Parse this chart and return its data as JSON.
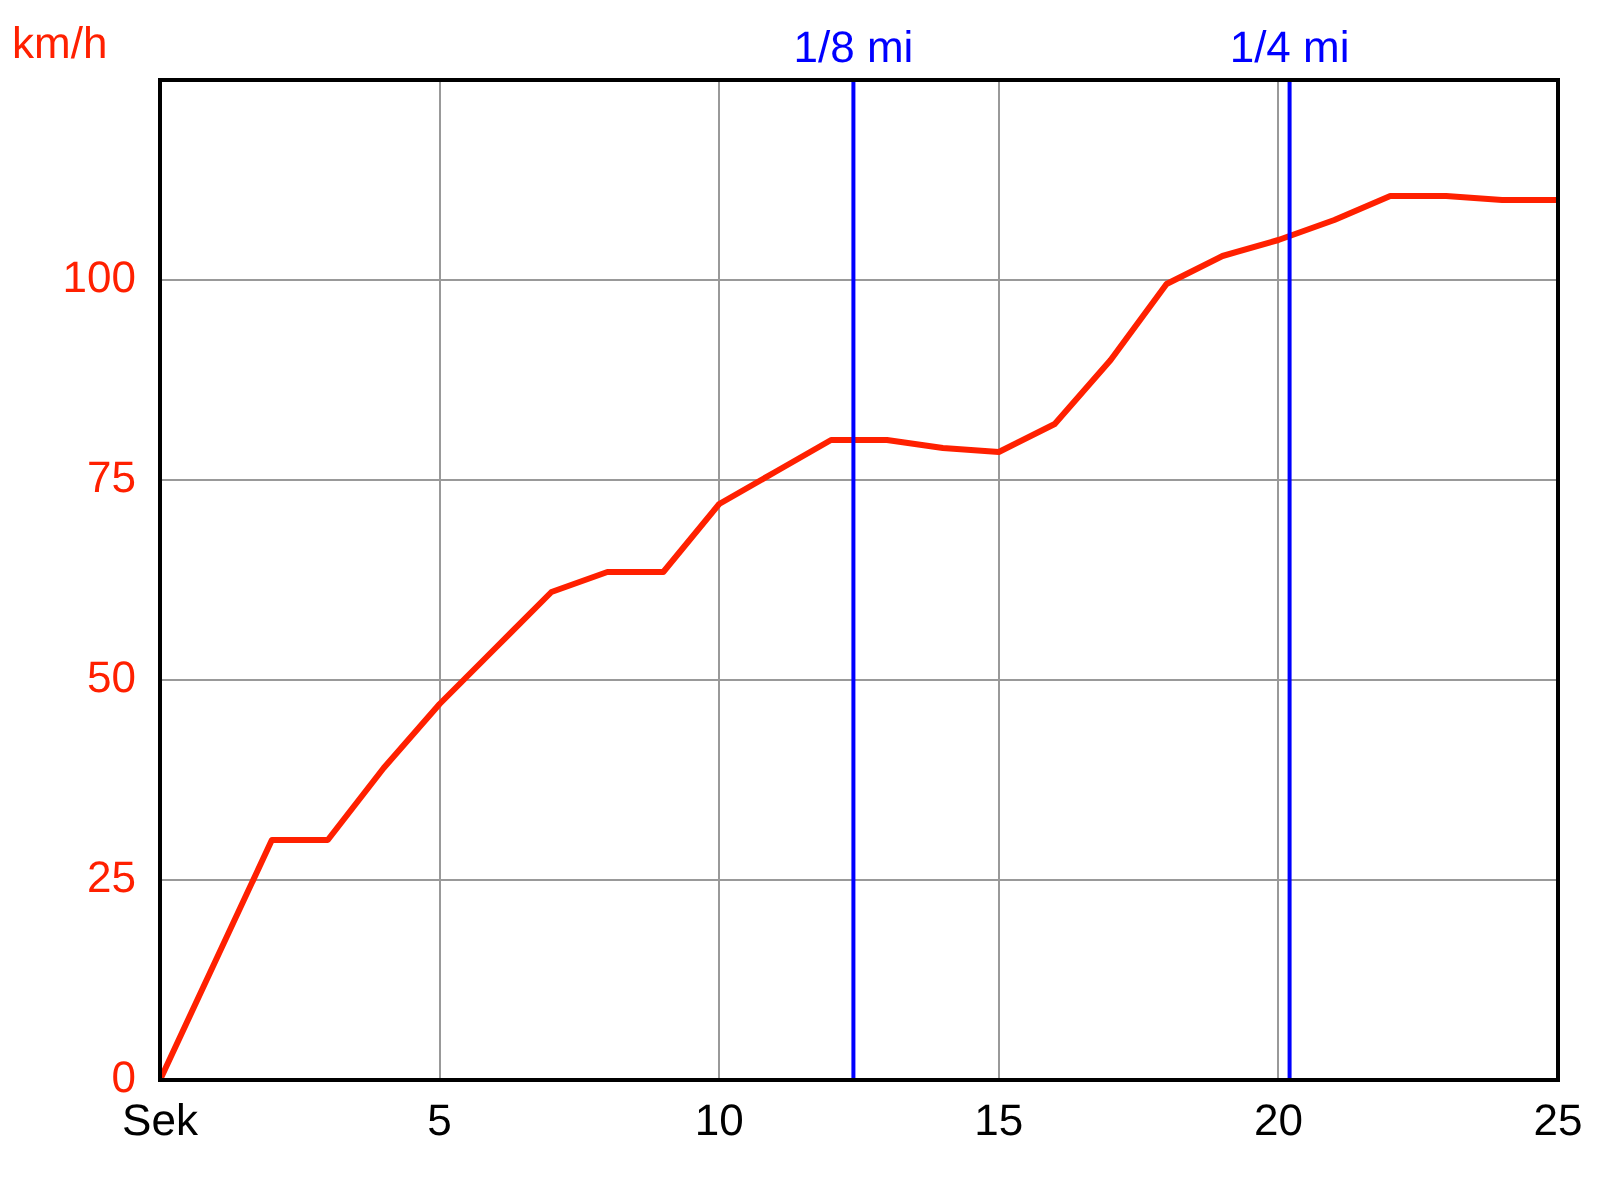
{
  "chart_data": {
    "type": "line",
    "ylabel": "km/h",
    "x": [
      0,
      2,
      3,
      4,
      5,
      6,
      7,
      8,
      9,
      10,
      11,
      12,
      12.5,
      13,
      14,
      15,
      16,
      17,
      18,
      19,
      20,
      21,
      22,
      23,
      24,
      25
    ],
    "series": [
      {
        "color": "#ff2000",
        "values": [
          0,
          30,
          30,
          39,
          47,
          54,
          61,
          63.5,
          63.5,
          72,
          76,
          80,
          80,
          80,
          79,
          78.5,
          82,
          90,
          99.5,
          103,
          105,
          107.5,
          110.5,
          110.5,
          110,
          110
        ]
      }
    ],
    "xlim": [
      0,
      25
    ],
    "xticks": [
      {
        "value": 0,
        "label": "Sek"
      },
      5,
      10,
      15,
      20,
      25
    ],
    "ylim": [
      0,
      125
    ],
    "yticks": [
      0,
      25,
      50,
      75,
      100
    ],
    "grid": true,
    "marker": "none",
    "line_style": "solid",
    "ref_lines": [
      {
        "axis": "x",
        "value": 12.4,
        "label": "1/8 mi",
        "color": "#0000ff"
      },
      {
        "axis": "x",
        "value": 20.2,
        "label": "1/4 mi",
        "color": "#0000ff"
      }
    ]
  }
}
